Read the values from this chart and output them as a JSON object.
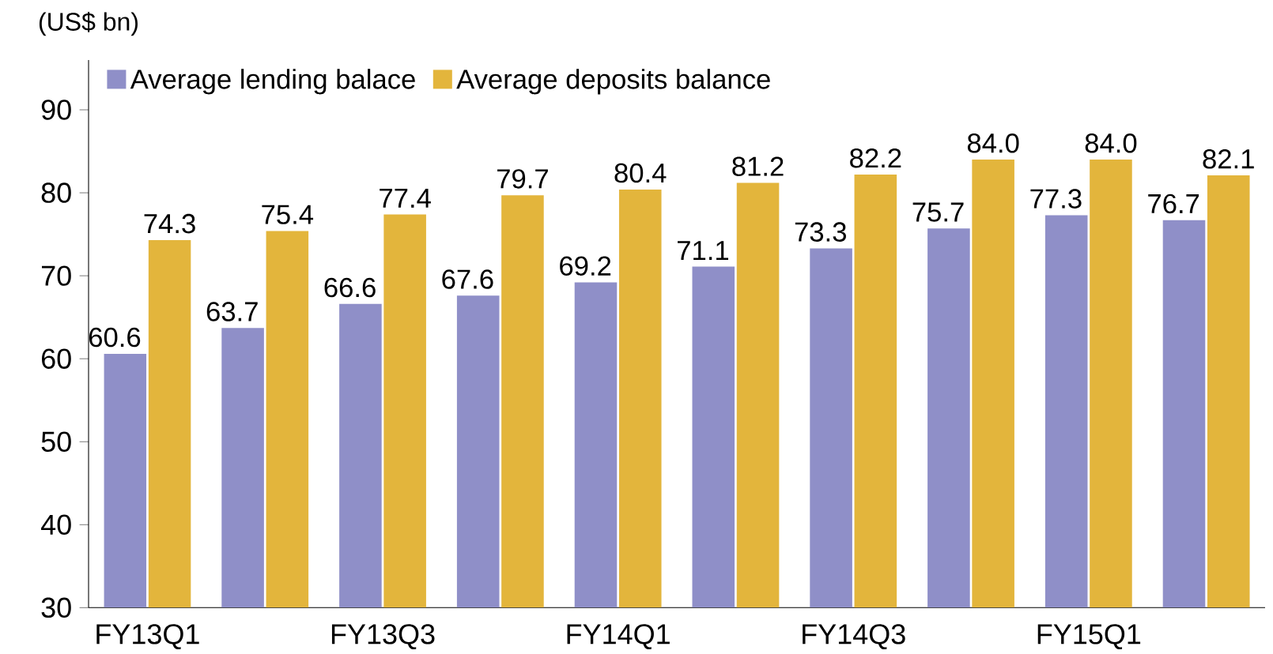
{
  "chart_data": {
    "type": "bar",
    "ylabel": "(US$ bn)",
    "categories": [
      "FY13Q1",
      null,
      "FY13Q3",
      null,
      "FY14Q1",
      null,
      "FY14Q3",
      null,
      "FY15Q1",
      null
    ],
    "series": [
      {
        "name": "Average lending balace",
        "color": "#8f8fc8",
        "values": [
          60.6,
          63.7,
          66.6,
          67.6,
          69.2,
          71.1,
          73.3,
          75.7,
          77.3,
          76.7
        ],
        "value_labels": [
          "60.6",
          "63.7",
          "66.6",
          "67.6",
          "69.2",
          "71.1",
          "73.3",
          "75.7",
          "77.3",
          "76.7"
        ]
      },
      {
        "name": "Average deposits balance",
        "color": "#e3b53c",
        "values": [
          74.3,
          75.4,
          77.4,
          79.7,
          80.4,
          81.2,
          82.2,
          84.0,
          84.0,
          82.1
        ],
        "value_labels": [
          "74.3",
          "75.4",
          "77.4",
          "79.7",
          "80.4",
          "81.2",
          "82.2",
          "84.0",
          "84.0",
          "82.1"
        ]
      }
    ],
    "ylim": [
      30,
      96
    ],
    "yticks": [
      30,
      40,
      50,
      60,
      70,
      80,
      90
    ],
    "legend": "top left",
    "grid": false
  }
}
